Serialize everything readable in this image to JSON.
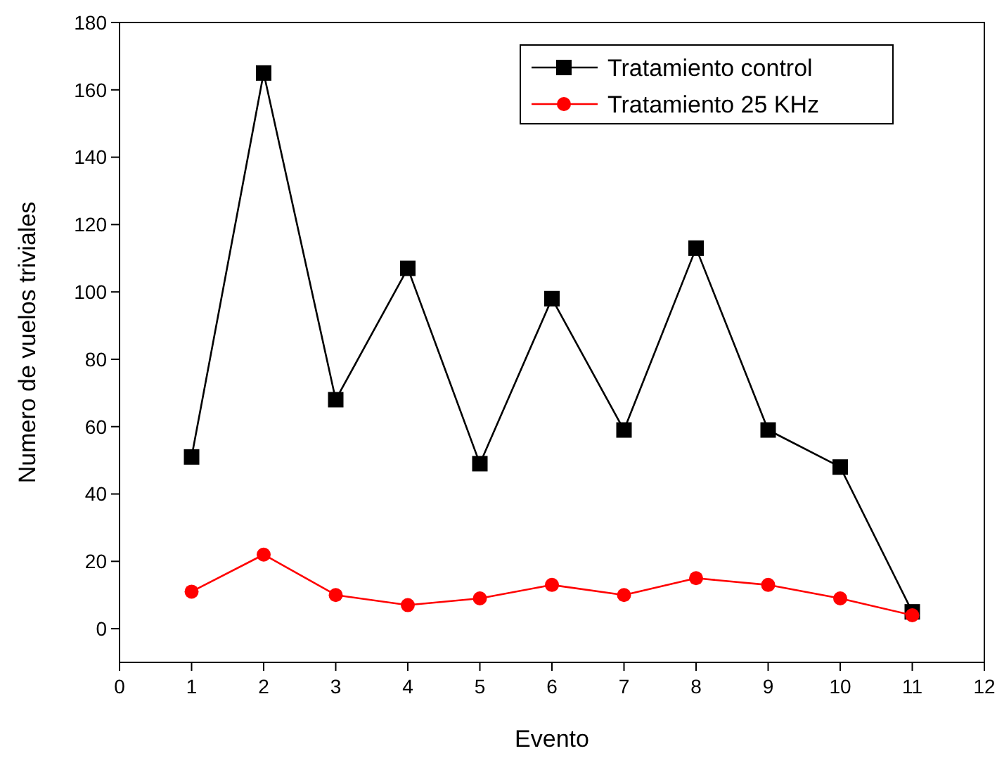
{
  "chart_data": {
    "type": "line",
    "xlabel": "Evento",
    "ylabel": "Numero de vuelos triviales",
    "x": [
      1,
      2,
      3,
      4,
      5,
      6,
      7,
      8,
      9,
      10,
      11
    ],
    "series": [
      {
        "name": "Tratamiento control",
        "color": "#000000",
        "marker": "square",
        "values": [
          51,
          165,
          68,
          107,
          49,
          98,
          59,
          113,
          59,
          48,
          5
        ]
      },
      {
        "name": "Tratamiento 25 KHz",
        "color": "#ff0000",
        "marker": "circle",
        "values": [
          11,
          22,
          10,
          7,
          9,
          13,
          10,
          15,
          13,
          9,
          4
        ]
      }
    ],
    "xlim": [
      0,
      12
    ],
    "xticks": [
      0,
      1,
      2,
      3,
      4,
      5,
      6,
      7,
      8,
      9,
      10,
      11,
      12
    ],
    "ylim": [
      -10,
      180
    ],
    "yticks": [
      0,
      20,
      40,
      60,
      80,
      100,
      120,
      140,
      160,
      180
    ],
    "grid": false,
    "legend": "top right",
    "line_style": "solid"
  }
}
